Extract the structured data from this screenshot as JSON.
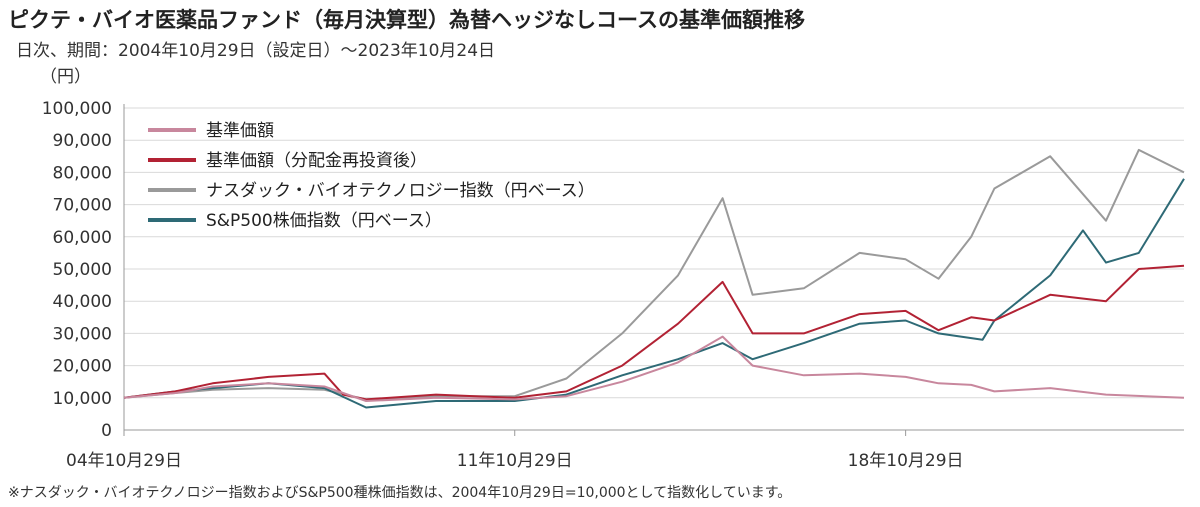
{
  "title": "ピクテ・バイオ医薬品ファンド（毎月決算型）為替ヘッジなしコースの基準価額推移",
  "subtitle": "日次、期間：2004年10月29日（設定日）～2023年10月24日",
  "footnote": "※ナスダック・バイオテクノロジー指数およびS&P500種株価指数は、2004年10月29日=10,000として指数化しています。",
  "chart_data": {
    "type": "line",
    "yunit": "（円）",
    "ylim": [
      0,
      100000
    ],
    "yticks": [
      "0",
      "10,000",
      "20,000",
      "30,000",
      "40,000",
      "50,000",
      "60,000",
      "70,000",
      "80,000",
      "90,000",
      "100,000"
    ],
    "xlim": [
      "2004-10-29",
      "2023-10-24"
    ],
    "xticks": [
      {
        "date": "2004-10-29",
        "label": "04年10月29日"
      },
      {
        "date": "2011-10-29",
        "label": "11年10月29日"
      },
      {
        "date": "2018-10-29",
        "label": "18年10月29日"
      }
    ],
    "grid": true,
    "legend_position": "top-left",
    "series": [
      {
        "name": "基準価額",
        "color": "#c8879d",
        "points": [
          [
            "2004-10-29",
            10000
          ],
          [
            "2005-10-01",
            11500
          ],
          [
            "2006-06-01",
            13500
          ],
          [
            "2007-06-01",
            14500
          ],
          [
            "2008-06-01",
            13500
          ],
          [
            "2009-03-01",
            9000
          ],
          [
            "2010-06-01",
            10000
          ],
          [
            "2011-10-29",
            9500
          ],
          [
            "2012-10-01",
            10500
          ],
          [
            "2013-10-01",
            15000
          ],
          [
            "2014-10-01",
            21000
          ],
          [
            "2015-07-20",
            29000
          ],
          [
            "2016-02-01",
            20000
          ],
          [
            "2017-01-01",
            17000
          ],
          [
            "2018-01-01",
            17500
          ],
          [
            "2018-10-29",
            16500
          ],
          [
            "2019-06-01",
            14500
          ],
          [
            "2020-01-01",
            14000
          ],
          [
            "2020-06-01",
            12000
          ],
          [
            "2021-06-01",
            13000
          ],
          [
            "2022-06-01",
            11000
          ],
          [
            "2023-10-24",
            10000
          ]
        ]
      },
      {
        "name": "基準価額（分配金再投資後）",
        "color": "#b22234",
        "points": [
          [
            "2004-10-29",
            10000
          ],
          [
            "2005-10-01",
            12000
          ],
          [
            "2006-06-01",
            14500
          ],
          [
            "2007-06-01",
            16500
          ],
          [
            "2008-06-01",
            17500
          ],
          [
            "2008-10-01",
            11000
          ],
          [
            "2009-03-01",
            9500
          ],
          [
            "2010-06-01",
            11000
          ],
          [
            "2011-10-29",
            10000
          ],
          [
            "2012-10-01",
            12000
          ],
          [
            "2013-10-01",
            20000
          ],
          [
            "2014-10-01",
            33000
          ],
          [
            "2015-07-20",
            46000
          ],
          [
            "2016-02-01",
            30000
          ],
          [
            "2017-01-01",
            30000
          ],
          [
            "2018-01-01",
            36000
          ],
          [
            "2018-10-29",
            37000
          ],
          [
            "2019-06-01",
            31000
          ],
          [
            "2020-01-01",
            35000
          ],
          [
            "2020-06-01",
            34000
          ],
          [
            "2021-06-01",
            42000
          ],
          [
            "2022-06-01",
            40000
          ],
          [
            "2023-01-01",
            50000
          ],
          [
            "2023-10-24",
            51000
          ]
        ]
      },
      {
        "name": "ナスダック・バイオテクノロジー指数（円ベース）",
        "color": "#9a9a9a",
        "points": [
          [
            "2004-10-29",
            10000
          ],
          [
            "2005-10-01",
            11500
          ],
          [
            "2006-06-01",
            12500
          ],
          [
            "2007-06-01",
            13000
          ],
          [
            "2008-06-01",
            12500
          ],
          [
            "2009-03-01",
            9500
          ],
          [
            "2010-06-01",
            10500
          ],
          [
            "2011-10-29",
            10500
          ],
          [
            "2012-10-01",
            16000
          ],
          [
            "2013-10-01",
            30000
          ],
          [
            "2014-10-01",
            48000
          ],
          [
            "2015-07-20",
            72000
          ],
          [
            "2016-02-01",
            42000
          ],
          [
            "2017-01-01",
            44000
          ],
          [
            "2018-01-01",
            55000
          ],
          [
            "2018-10-29",
            53000
          ],
          [
            "2019-06-01",
            47000
          ],
          [
            "2020-01-01",
            60000
          ],
          [
            "2020-06-01",
            75000
          ],
          [
            "2021-06-01",
            85000
          ],
          [
            "2022-06-01",
            65000
          ],
          [
            "2023-01-01",
            87000
          ],
          [
            "2023-10-24",
            80000
          ]
        ]
      },
      {
        "name": "S&P500株価指数（円ベース）",
        "color": "#2e6a76",
        "points": [
          [
            "2004-10-29",
            10000
          ],
          [
            "2005-10-01",
            12000
          ],
          [
            "2006-06-01",
            13000
          ],
          [
            "2007-06-01",
            14500
          ],
          [
            "2008-06-01",
            13000
          ],
          [
            "2009-03-01",
            7000
          ],
          [
            "2010-06-01",
            9000
          ],
          [
            "2011-10-29",
            9000
          ],
          [
            "2012-10-01",
            11000
          ],
          [
            "2013-10-01",
            17000
          ],
          [
            "2014-10-01",
            22000
          ],
          [
            "2015-07-20",
            27000
          ],
          [
            "2016-02-01",
            22000
          ],
          [
            "2017-01-01",
            27000
          ],
          [
            "2018-01-01",
            33000
          ],
          [
            "2018-10-29",
            34000
          ],
          [
            "2019-06-01",
            30000
          ],
          [
            "2020-03-15",
            28000
          ],
          [
            "2020-06-01",
            34000
          ],
          [
            "2021-06-01",
            48000
          ],
          [
            "2022-01-01",
            62000
          ],
          [
            "2022-06-01",
            52000
          ],
          [
            "2023-01-01",
            55000
          ],
          [
            "2023-10-24",
            78000
          ]
        ]
      }
    ]
  }
}
